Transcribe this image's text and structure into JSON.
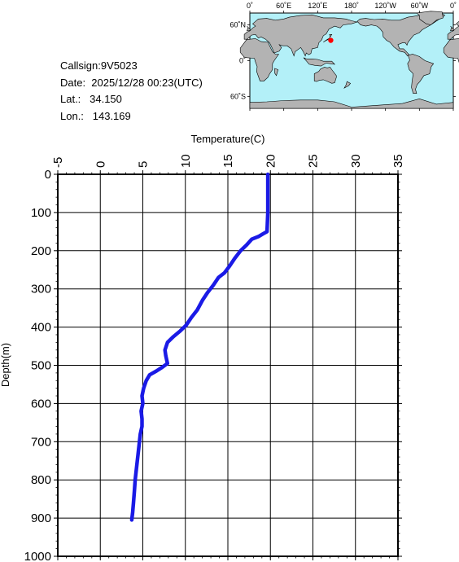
{
  "info": {
    "callsign": "Callsign:9V5023",
    "date": "Date:  2025/12/28 00:23(UTC)",
    "lat": "Lat.:   34.150",
    "lon": "Lon.:   143.169"
  },
  "map": {
    "lon_labels": [
      "0˚",
      "60˚E",
      "120˚E",
      "180˚",
      "120˚W",
      "60˚W",
      "0˚"
    ],
    "lat_labels": [
      "60˚N",
      "0˚",
      "60˚S"
    ],
    "ocean_color": "#b3f0f8",
    "land_color": "#b3b3b3",
    "marker_color": "#ff0000",
    "marker_lat": 34.15,
    "marker_lon": 143.169
  },
  "chart_data": {
    "type": "line",
    "xlabel": "Temperature(C)",
    "ylabel": "Depth(m)",
    "xlim": [
      -5,
      35
    ],
    "ylim": [
      1000,
      0
    ],
    "xticks": [
      -5,
      0,
      5,
      10,
      15,
      20,
      25,
      30,
      35
    ],
    "yticks": [
      0,
      100,
      200,
      300,
      400,
      500,
      600,
      700,
      800,
      900,
      1000
    ],
    "grid": true,
    "line_color": "#1a1ae6",
    "series": [
      {
        "x": [
          19.7,
          19.7,
          19.7,
          19.6,
          19.2,
          18.6,
          17.8,
          17.2,
          16.5,
          15.8,
          15.2,
          14.6,
          13.9,
          13.3,
          12.6,
          12.0,
          11.4,
          10.7,
          10.1,
          9.4,
          8.6,
          7.9,
          7.6,
          7.7,
          7.9,
          7.3,
          6.6,
          5.8,
          5.4,
          5.1,
          4.9,
          5.0,
          4.8,
          4.9,
          4.9,
          4.7,
          4.5,
          4.3,
          4.1,
          4.0,
          3.9,
          3.8,
          3.7
        ],
        "y": [
          0,
          50,
          100,
          150,
          155,
          163,
          170,
          185,
          200,
          220,
          240,
          258,
          270,
          290,
          310,
          330,
          355,
          375,
          395,
          410,
          425,
          440,
          460,
          475,
          495,
          505,
          515,
          525,
          540,
          560,
          580,
          600,
          620,
          640,
          660,
          680,
          720,
          760,
          800,
          830,
          860,
          885,
          905
        ]
      }
    ]
  }
}
